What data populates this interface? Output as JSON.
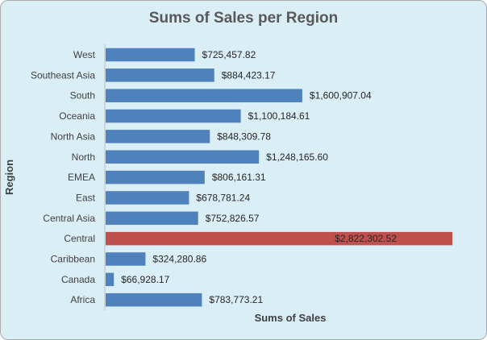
{
  "chart_data": {
    "type": "bar",
    "orientation": "horizontal",
    "title": "Sums of Sales per Region",
    "xlabel": "Sums of Sales",
    "ylabel": "Region",
    "categories": [
      "West",
      "Southeast Asia",
      "South",
      "Oceania",
      "North Asia",
      "North",
      "EMEA",
      "East",
      "Central Asia",
      "Central",
      "Caribbean",
      "Canada",
      "Africa"
    ],
    "values": [
      725457.82,
      884423.17,
      1600907.04,
      1100184.61,
      848309.78,
      1248165.6,
      806161.31,
      678781.24,
      752826.57,
      2822302.52,
      324280.86,
      66928.17,
      783773.21
    ],
    "value_labels": [
      "$725,457.82",
      "$884,423.17",
      "$1,600,907.04",
      "$1,100,184.61",
      "$848,309.78",
      "$1,248,165.60",
      "$806,161.31",
      "$678,781.24",
      "$752,826.57",
      "$2,822,302.52",
      "$324,280.86",
      "$66,928.17",
      "$783,773.21"
    ],
    "highlight_category": "Central",
    "colors": {
      "bar": "#4f81bd",
      "highlight": "#c0504d",
      "background": "#daeef5"
    },
    "grid": false,
    "legend": "none"
  }
}
